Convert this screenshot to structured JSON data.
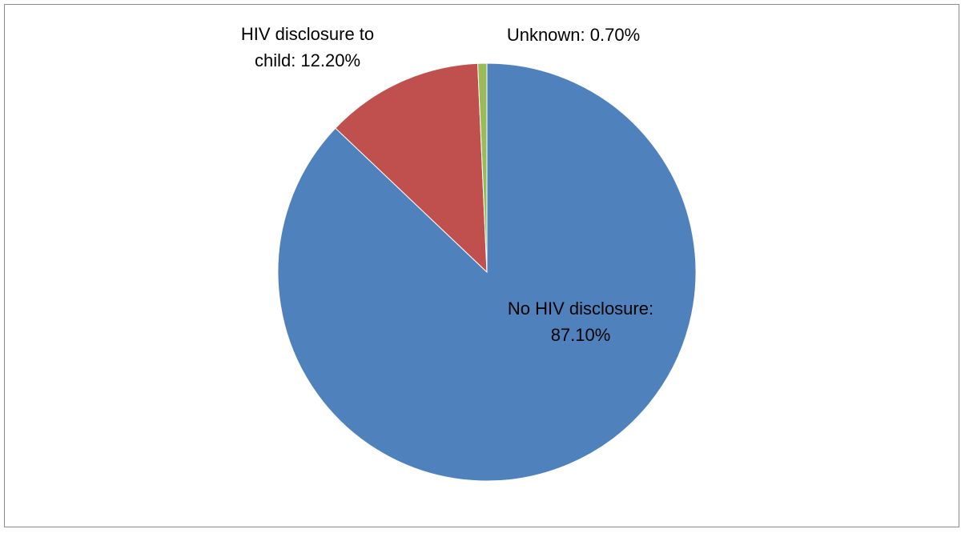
{
  "chart_data": {
    "type": "pie",
    "title": "",
    "start_angle_deg": 0,
    "direction": "clockwise",
    "slices": [
      {
        "name": "No HIV disclosure",
        "value": 87.1,
        "label_lines": [
          "No HIV disclosure:",
          "87.10%"
        ],
        "color": "#4f81bd"
      },
      {
        "name": "HIV disclosure to child",
        "value": 12.2,
        "label_lines": [
          "HIV disclosure to",
          "child: 12.20%"
        ],
        "color": "#c0504d"
      },
      {
        "name": "Unknown",
        "value": 0.7,
        "label_lines": [
          "Unknown: 0.70%"
        ],
        "color": "#9bbb59"
      }
    ],
    "legend": "none",
    "data_labels": "category-and-percent"
  }
}
